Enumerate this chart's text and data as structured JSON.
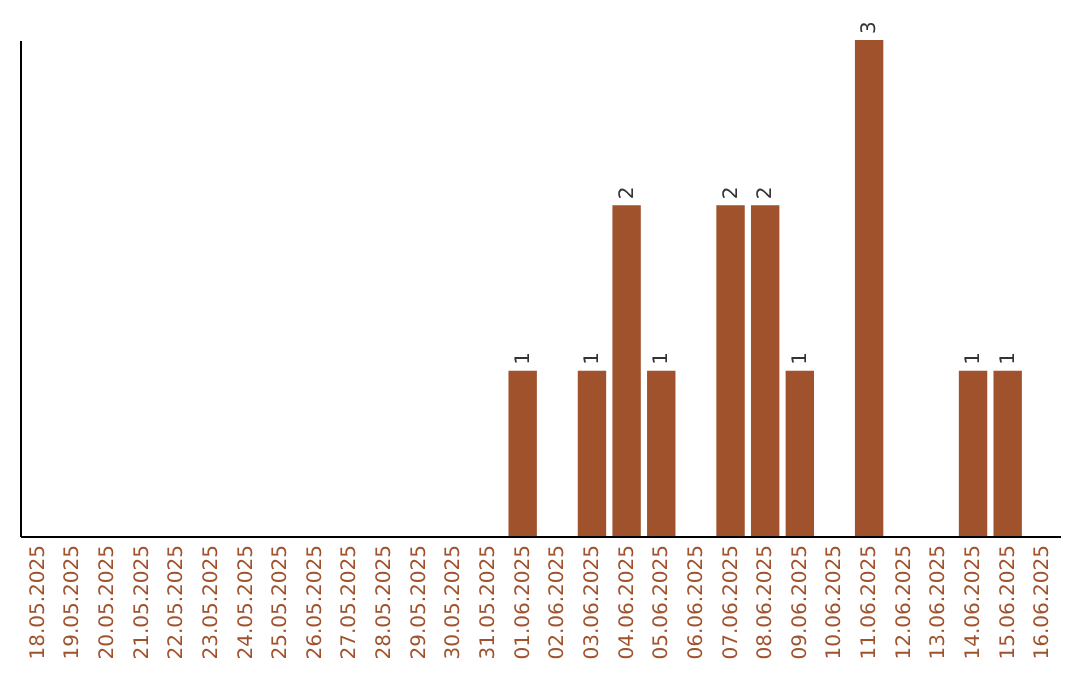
{
  "chart_data": {
    "type": "bar",
    "categories": [
      "18.05.2025",
      "19.05.2025",
      "20.05.2025",
      "21.05.2025",
      "22.05.2025",
      "23.05.2025",
      "24.05.2025",
      "25.05.2025",
      "26.05.2025",
      "27.05.2025",
      "28.05.2025",
      "29.05.2025",
      "30.05.2025",
      "31.05.2025",
      "01.06.2025",
      "02.06.2025",
      "03.06.2025",
      "04.06.2025",
      "05.06.2025",
      "06.06.2025",
      "07.06.2025",
      "08.06.2025",
      "09.06.2025",
      "10.06.2025",
      "11.06.2025",
      "12.06.2025",
      "13.06.2025",
      "14.06.2025",
      "15.06.2025",
      "16.06.2025"
    ],
    "values": [
      null,
      null,
      null,
      null,
      null,
      null,
      null,
      null,
      null,
      null,
      null,
      null,
      null,
      null,
      1,
      null,
      1,
      2,
      1,
      null,
      2,
      2,
      1,
      null,
      3,
      null,
      null,
      1,
      1,
      null
    ],
    "data_labels": true,
    "color": "#a0522d",
    "grid": false,
    "tick_labels": "x"
  }
}
